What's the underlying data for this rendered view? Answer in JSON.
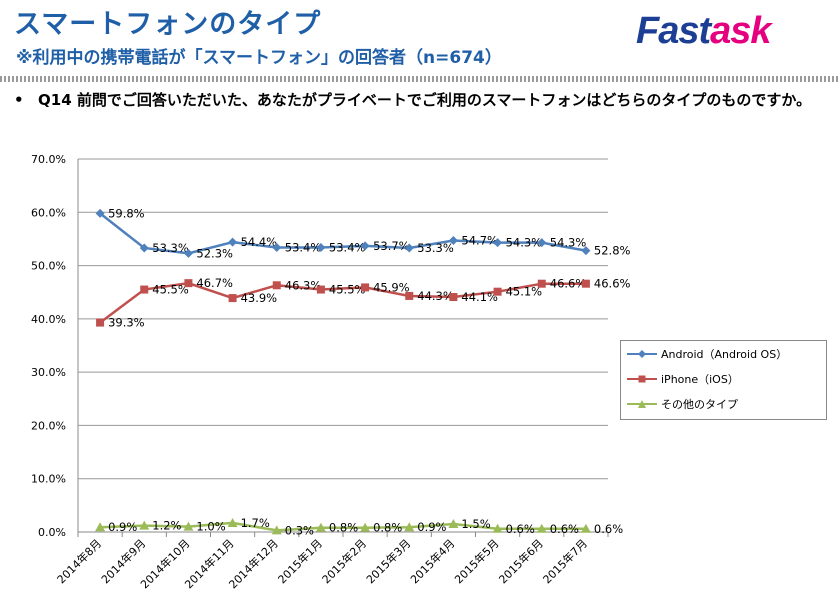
{
  "header": {
    "title": "スマートフォンのタイプ",
    "subtitle": "※利用中の携帯電話が「スマートフォン」の回答者（n=674）",
    "logo_text_a": "Fast",
    "logo_text_b": "ask"
  },
  "question": {
    "bullet": "•",
    "text": "Q14 前問でご回答いただいた、あなたがプライベートでご利用のスマートフォンはどちらのタイプのものですか。"
  },
  "colors": {
    "title": "#1f5fa8",
    "android": "#4f81bd",
    "iphone": "#c0504d",
    "other": "#9bbb59",
    "logo_a": "#1c3f95",
    "logo_b": "#e4007f"
  },
  "chart_data": {
    "type": "line",
    "categories": [
      "2014年8月",
      "2014年9月",
      "2014年10月",
      "2014年11月",
      "2014年12月",
      "2015年1月",
      "2015年2月",
      "2015年3月",
      "2015年4月",
      "2015年5月",
      "2015年6月",
      "2015年7月"
    ],
    "ylim": [
      0,
      70
    ],
    "yticks": [
      "0.0%",
      "10.0%",
      "20.0%",
      "30.0%",
      "40.0%",
      "50.0%",
      "60.0%",
      "70.0%"
    ],
    "grid": true,
    "legend_position": "right",
    "series": [
      {
        "name": "Android（Android OS）",
        "marker": "diamond",
        "values": [
          59.8,
          53.3,
          52.3,
          54.4,
          53.4,
          53.4,
          53.7,
          53.3,
          54.7,
          54.3,
          54.3,
          52.8
        ],
        "labels": [
          "59.8%",
          "53.3%",
          "52.3%",
          "54.4%",
          "53.4%",
          "53.4%",
          "53.7%",
          "53.3%",
          "54.7%",
          "54.3%",
          "54.3%",
          "52.8%"
        ]
      },
      {
        "name": "iPhone（iOS）",
        "marker": "square",
        "values": [
          39.3,
          45.5,
          46.7,
          43.9,
          46.3,
          45.5,
          45.9,
          44.3,
          44.1,
          45.1,
          46.6,
          46.6
        ],
        "labels": [
          "39.3%",
          "45.5%",
          "46.7%",
          "43.9%",
          "46.3%",
          "45.5%",
          "45.9%",
          "44.3%",
          "44.1%",
          "45.1%",
          "46.6%",
          "46.6%"
        ]
      },
      {
        "name": "その他のタイプ",
        "marker": "triangle",
        "values": [
          0.9,
          1.2,
          1.0,
          1.7,
          0.3,
          0.8,
          0.8,
          0.9,
          1.5,
          0.6,
          0.6,
          0.6
        ],
        "labels": [
          "0.9%",
          "1.2%",
          "1.0%",
          "1.7%",
          "0.3%",
          "0.8%",
          "0.8%",
          "0.9%",
          "1.5%",
          "0.6%",
          "0.6%",
          "0.6%"
        ]
      }
    ]
  }
}
